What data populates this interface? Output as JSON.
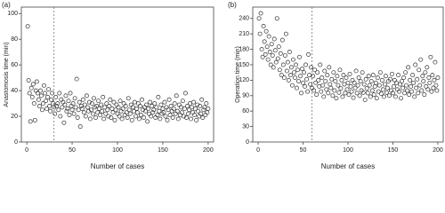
{
  "chart_data": [
    {
      "type": "scatter",
      "panel_label": "(a)",
      "x_label": "Number of cases",
      "y_label": "Anastomosis time (min)",
      "xlim": [
        -6,
        206
      ],
      "ylim": [
        0,
        105
      ],
      "xticks": [
        0,
        50,
        100,
        150,
        200
      ],
      "yticks": [
        0,
        20,
        40,
        60,
        80,
        100
      ],
      "reference_line_x": 30,
      "color": "#333333",
      "x": [
        1,
        2,
        3,
        4,
        5,
        6,
        7,
        8,
        9,
        10,
        11,
        12,
        13,
        14,
        15,
        16,
        17,
        18,
        19,
        20,
        21,
        22,
        23,
        24,
        25,
        26,
        27,
        28,
        29,
        30,
        31,
        32,
        33,
        34,
        35,
        36,
        37,
        38,
        39,
        40,
        41,
        42,
        43,
        44,
        45,
        46,
        47,
        48,
        49,
        50,
        51,
        52,
        53,
        54,
        55,
        56,
        57,
        58,
        59,
        60,
        61,
        62,
        63,
        64,
        65,
        66,
        67,
        68,
        69,
        70,
        71,
        72,
        73,
        74,
        75,
        76,
        77,
        78,
        79,
        80,
        81,
        82,
        83,
        84,
        85,
        86,
        87,
        88,
        89,
        90,
        91,
        92,
        93,
        94,
        95,
        96,
        97,
        98,
        99,
        100,
        101,
        102,
        103,
        104,
        105,
        106,
        107,
        108,
        109,
        110,
        111,
        112,
        113,
        114,
        115,
        116,
        117,
        118,
        119,
        120,
        121,
        122,
        123,
        124,
        125,
        126,
        127,
        128,
        129,
        130,
        131,
        132,
        133,
        134,
        135,
        136,
        137,
        138,
        139,
        140,
        141,
        142,
        143,
        144,
        145,
        146,
        147,
        148,
        149,
        150,
        151,
        152,
        153,
        154,
        155,
        156,
        157,
        158,
        159,
        160,
        161,
        162,
        163,
        164,
        165,
        166,
        167,
        168,
        169,
        170,
        171,
        172,
        173,
        174,
        175,
        176,
        177,
        178,
        179,
        180,
        181,
        182,
        183,
        184,
        185,
        186,
        187,
        188,
        189,
        190,
        191,
        192,
        193,
        194,
        195,
        196,
        197,
        198,
        199,
        200
      ],
      "values": [
        90,
        48,
        38,
        16,
        42,
        35,
        45,
        30,
        17,
        40,
        47,
        38,
        33,
        28,
        40,
        36,
        25,
        30,
        44,
        38,
        32,
        26,
        35,
        41,
        28,
        24,
        33,
        38,
        30,
        27,
        22,
        35,
        28,
        30,
        25,
        38,
        20,
        33,
        27,
        31,
        15,
        29,
        36,
        24,
        26,
        32,
        21,
        38,
        28,
        25,
        30,
        22,
        34,
        27,
        49,
        19,
        25,
        31,
        12,
        28,
        26,
        33,
        23,
        29,
        20,
        36,
        27,
        24,
        31,
        18,
        25,
        30,
        22,
        34,
        27,
        19,
        28,
        23,
        32,
        26,
        21,
        29,
        24,
        35,
        18,
        27,
        22,
        30,
        25,
        20,
        28,
        33,
        19,
        26,
        23,
        31,
        17,
        25,
        29,
        22,
        27,
        20,
        32,
        24,
        18,
        26,
        30,
        21,
        28,
        23,
        19,
        34,
        25,
        22,
        29,
        17,
        27,
        24,
        31,
        20,
        26,
        23,
        30,
        18,
        28,
        21,
        33,
        25,
        19,
        27,
        24,
        29,
        16,
        26,
        22,
        31,
        20,
        28,
        23,
        25,
        30,
        19,
        27,
        21,
        35,
        24,
        18,
        29,
        22,
        26,
        23,
        31,
        20,
        27,
        17,
        25,
        33,
        21,
        28,
        24,
        19,
        26,
        30,
        22,
        36,
        24,
        18,
        29,
        21,
        27,
        23,
        32,
        20,
        26,
        38,
        19,
        28,
        22,
        25,
        30,
        18,
        27,
        23,
        31,
        21,
        26,
        17,
        29,
        24,
        20,
        28,
        22,
        33,
        19,
        25,
        27,
        21,
        30,
        23,
        26
      ]
    },
    {
      "type": "scatter",
      "panel_label": "(b)",
      "x_label": "Number of cases",
      "y_label": "Operation time (min)",
      "xlim": [
        -6,
        206
      ],
      "ylim": [
        0,
        262
      ],
      "xticks": [
        0,
        50,
        100,
        150,
        200
      ],
      "yticks": [
        0,
        30,
        60,
        90,
        120,
        150,
        180,
        210,
        240
      ],
      "reference_line_x": 60,
      "color": "#333333",
      "x": [
        1,
        2,
        3,
        4,
        5,
        6,
        7,
        8,
        9,
        10,
        11,
        12,
        13,
        14,
        15,
        16,
        17,
        18,
        19,
        20,
        21,
        22,
        23,
        24,
        25,
        26,
        27,
        28,
        29,
        30,
        31,
        32,
        33,
        34,
        35,
        36,
        37,
        38,
        39,
        40,
        41,
        42,
        43,
        44,
        45,
        46,
        47,
        48,
        49,
        50,
        51,
        52,
        53,
        54,
        55,
        56,
        57,
        58,
        59,
        60,
        61,
        62,
        63,
        64,
        65,
        66,
        67,
        68,
        69,
        70,
        71,
        72,
        73,
        74,
        75,
        76,
        77,
        78,
        79,
        80,
        81,
        82,
        83,
        84,
        85,
        86,
        87,
        88,
        89,
        90,
        91,
        92,
        93,
        94,
        95,
        96,
        97,
        98,
        99,
        100,
        101,
        102,
        103,
        104,
        105,
        106,
        107,
        108,
        109,
        110,
        111,
        112,
        113,
        114,
        115,
        116,
        117,
        118,
        119,
        120,
        121,
        122,
        123,
        124,
        125,
        126,
        127,
        128,
        129,
        130,
        131,
        132,
        133,
        134,
        135,
        136,
        137,
        138,
        139,
        140,
        141,
        142,
        143,
        144,
        145,
        146,
        147,
        148,
        149,
        150,
        151,
        152,
        153,
        154,
        155,
        156,
        157,
        158,
        159,
        160,
        161,
        162,
        163,
        164,
        165,
        166,
        167,
        168,
        169,
        170,
        171,
        172,
        173,
        174,
        175,
        176,
        177,
        178,
        179,
        180,
        181,
        182,
        183,
        184,
        185,
        186,
        187,
        188,
        189,
        190,
        191,
        192,
        193,
        194,
        195,
        196,
        197,
        198,
        199,
        200
      ],
      "values": [
        240,
        210,
        250,
        180,
        165,
        225,
        195,
        170,
        215,
        185,
        160,
        205,
        175,
        150,
        190,
        168,
        145,
        200,
        178,
        155,
        240,
        162,
        185,
        140,
        172,
        130,
        198,
        150,
        125,
        168,
        210,
        138,
        155,
        120,
        175,
        130,
        145,
        110,
        160,
        135,
        125,
        150,
        105,
        140,
        118,
        165,
        128,
        95,
        142,
        115,
        135,
        108,
        150,
        122,
        98,
        170,
        130,
        112,
        145,
        105,
        128,
        100,
        140,
        115,
        92,
        135,
        120,
        108,
        150,
        98,
        125,
        110,
        88,
        138,
        118,
        102,
        130,
        95,
        145,
        112,
        105,
        122,
        90,
        135,
        100,
        118,
        85,
        128,
        110,
        96,
        140,
        104,
        120,
        88,
        130,
        112,
        95,
        125,
        102,
        115,
        92,
        132,
        108,
        98,
        120,
        86,
        115,
        105,
        138,
        95,
        110,
        125,
        90,
        118,
        100,
        135,
        96,
        112,
        82,
        122,
        104,
        95,
        128,
        110,
        88,
        118,
        100,
        130,
        92,
        108,
        115,
        85,
        125,
        98,
        110,
        135,
        94,
        120,
        102,
        88,
        112,
        128,
        96,
        105,
        118,
        90,
        122,
        100,
        132,
        95,
        108,
        120,
        88,
        115,
        102,
        130,
        98,
        112,
        85,
        118,
        105,
        125,
        95,
        135,
        110,
        100,
        145,
        92,
        120,
        108,
        98,
        130,
        115,
        88,
        150,
        105,
        122,
        95,
        140,
        110,
        160,
        100,
        128,
        118,
        92,
        135,
        108,
        145,
        102,
        125,
        115,
        165,
        98,
        130,
        105,
        120,
        155,
        110,
        100,
        125
      ]
    }
  ]
}
